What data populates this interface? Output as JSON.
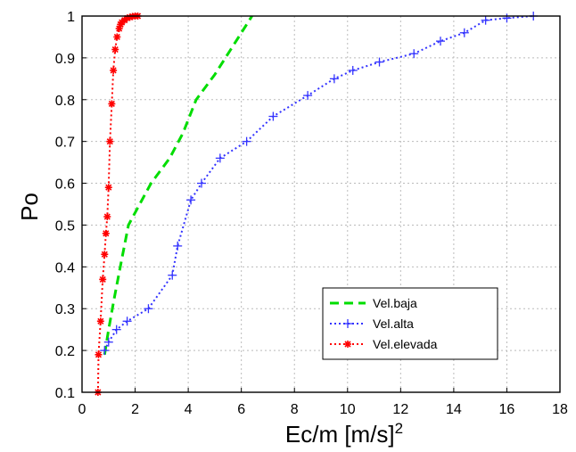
{
  "chart_data": {
    "type": "line",
    "title": "",
    "xlabel": "Ec/m [m/s]",
    "xlabel_superscript": "2",
    "ylabel": "Po",
    "xlim": [
      0,
      18
    ],
    "ylim": [
      0.1,
      1
    ],
    "x_ticks": [
      "0",
      "2",
      "4",
      "6",
      "8",
      "10",
      "12",
      "14",
      "16",
      "18"
    ],
    "y_ticks": [
      "0.1",
      "0.2",
      "0.3",
      "0.4",
      "0.5",
      "0.6",
      "0.7",
      "0.8",
      "0.9",
      "1"
    ],
    "grid": true,
    "legend_position": "lower-right",
    "series": [
      {
        "name": "Vel.baja",
        "color": "#00dd00",
        "style": "dashed",
        "marker": "none",
        "x": [
          0.85,
          1.0,
          1.2,
          1.5,
          1.75,
          2.0,
          2.6,
          3.3,
          3.8,
          4.3,
          5.0,
          5.6,
          6.0,
          6.4
        ],
        "y": [
          0.19,
          0.25,
          0.32,
          0.42,
          0.5,
          0.53,
          0.6,
          0.66,
          0.72,
          0.8,
          0.86,
          0.92,
          0.96,
          1.0
        ]
      },
      {
        "name": "Vel.alta",
        "color": "#3333ff",
        "style": "dotted",
        "marker": "plus",
        "x": [
          0.85,
          1.0,
          1.3,
          1.7,
          2.5,
          3.4,
          3.6,
          4.1,
          4.5,
          5.2,
          6.2,
          7.2,
          8.5,
          9.5,
          10.2,
          11.2,
          12.5,
          13.5,
          14.4,
          15.2,
          16.0,
          17.0
        ],
        "y": [
          0.2,
          0.22,
          0.25,
          0.27,
          0.3,
          0.38,
          0.45,
          0.56,
          0.6,
          0.66,
          0.7,
          0.76,
          0.81,
          0.85,
          0.87,
          0.89,
          0.91,
          0.94,
          0.96,
          0.99,
          0.995,
          1.0
        ]
      },
      {
        "name": "Vel.elevada",
        "color": "#ff0000",
        "style": "dotted",
        "marker": "star",
        "x": [
          0.6,
          0.62,
          0.7,
          0.78,
          0.85,
          0.9,
          0.95,
          1.0,
          1.05,
          1.12,
          1.18,
          1.25,
          1.32,
          1.4,
          1.45,
          1.5,
          1.6,
          1.7,
          1.8,
          1.9,
          2.0,
          2.1
        ],
        "y": [
          0.1,
          0.19,
          0.27,
          0.37,
          0.43,
          0.48,
          0.52,
          0.59,
          0.7,
          0.79,
          0.87,
          0.92,
          0.95,
          0.97,
          0.98,
          0.985,
          0.99,
          0.995,
          0.997,
          0.999,
          1.0,
          1.0
        ]
      }
    ]
  }
}
